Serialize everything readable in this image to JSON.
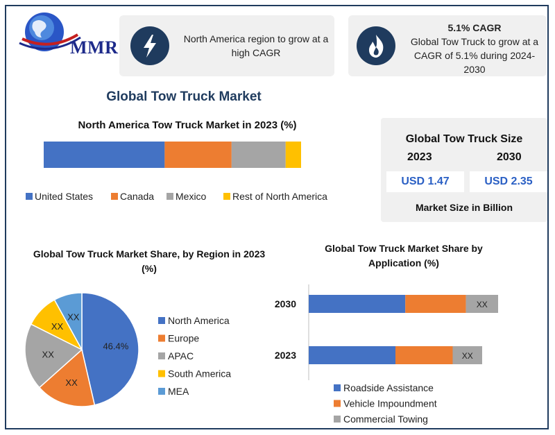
{
  "logo": {
    "text": "MMR"
  },
  "cards": [
    {
      "icon": "lightning-bolt-icon",
      "text": "North America region to grow at a high CAGR"
    },
    {
      "icon": "flame-icon",
      "title": "5.1% CAGR",
      "text": "Global Tow Truck to grow at a CAGR of 5.1% during 2024-2030"
    }
  ],
  "main_title": "Global Tow Truck Market",
  "size_box": {
    "title": "Global Tow Truck Size",
    "year1": "2023",
    "year2": "2030",
    "value1": "USD 1.47",
    "value2": "USD 2.35",
    "note": "Market Size in Billion"
  },
  "colors": {
    "blue": "#4472c4",
    "orange": "#ed7d31",
    "gray": "#a5a5a5",
    "yellow": "#ffc000",
    "lightblue": "#5b9bd5",
    "navy": "#1f3b5e"
  },
  "chart_data": [
    {
      "type": "bar",
      "stacked": true,
      "orientation": "horizontal",
      "title": "North America Tow Truck Market in 2023 (%)",
      "series": [
        {
          "name": "United States",
          "values": [
            47
          ]
        },
        {
          "name": "Canada",
          "values": [
            26
          ]
        },
        {
          "name": "Mexico",
          "values": [
            21
          ]
        },
        {
          "name": "Rest of North America",
          "values": [
            6
          ]
        }
      ],
      "legend": "bottom"
    },
    {
      "type": "pie",
      "title": "Global Tow Truck Market Share, by Region in 2023 (%)",
      "labels": [
        "North America",
        "Europe",
        "APAC",
        "South America",
        "MEA"
      ],
      "values": [
        46.4,
        17,
        19,
        9.6,
        8
      ],
      "data_labels": [
        "46.4%",
        "XX",
        "XX",
        "XX",
        "XX"
      ],
      "legend": "right"
    },
    {
      "type": "bar",
      "stacked": true,
      "orientation": "horizontal",
      "title": "Global Tow Truck Market Share by Application (%)",
      "categories": [
        "2030",
        "2023"
      ],
      "series": [
        {
          "name": "Roadside Assistance",
          "values": [
            51,
            50
          ]
        },
        {
          "name": "Vehicle Impoundment",
          "values": [
            32,
            33
          ]
        },
        {
          "name": "Commercial Towing",
          "values": [
            17,
            17
          ]
        }
      ],
      "data_labels": [
        "XX",
        "XX"
      ],
      "legend": "bottom"
    }
  ]
}
